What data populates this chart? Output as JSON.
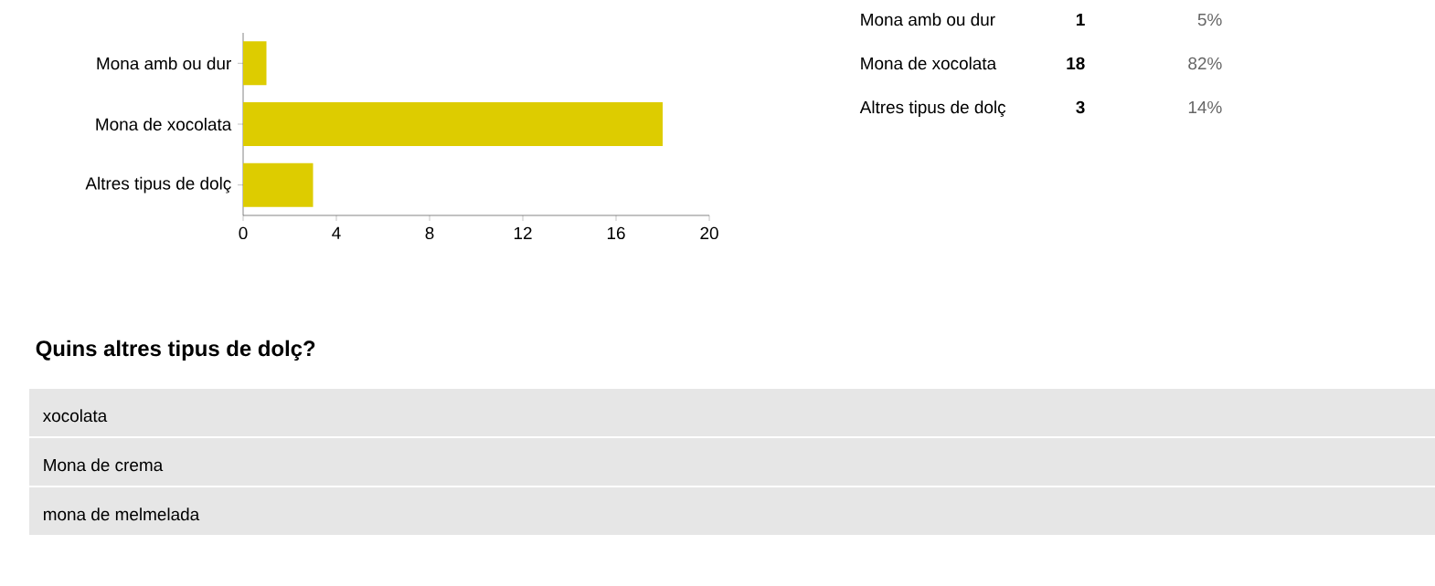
{
  "chart_data": {
    "type": "bar",
    "orientation": "horizontal",
    "categories": [
      "Mona amb ou dur",
      "Mona de xocolata",
      "Altres tipus de dolç"
    ],
    "values": [
      1,
      18,
      3
    ],
    "color": "#ddcc00",
    "xlim": [
      0,
      20
    ],
    "xticks": [
      0,
      4,
      8,
      12,
      16,
      20
    ],
    "annotations": [
      "1",
      "5%",
      "18",
      "82%",
      "3",
      "14%",
      "Quins altres tipus de dolç?",
      "xocolata",
      "Mona de crema",
      "mona de melmelada"
    ]
  }
}
